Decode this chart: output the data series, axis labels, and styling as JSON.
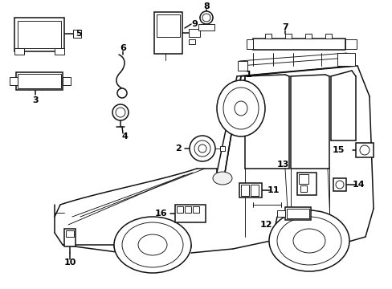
{
  "bg": "#ffffff",
  "lc": "#111111",
  "fig_w": 4.89,
  "fig_h": 3.6,
  "dpi": 100,
  "label_fs": 8.0,
  "lw_main": 1.1,
  "lw_thin": 0.65,
  "lw_thick": 1.5
}
